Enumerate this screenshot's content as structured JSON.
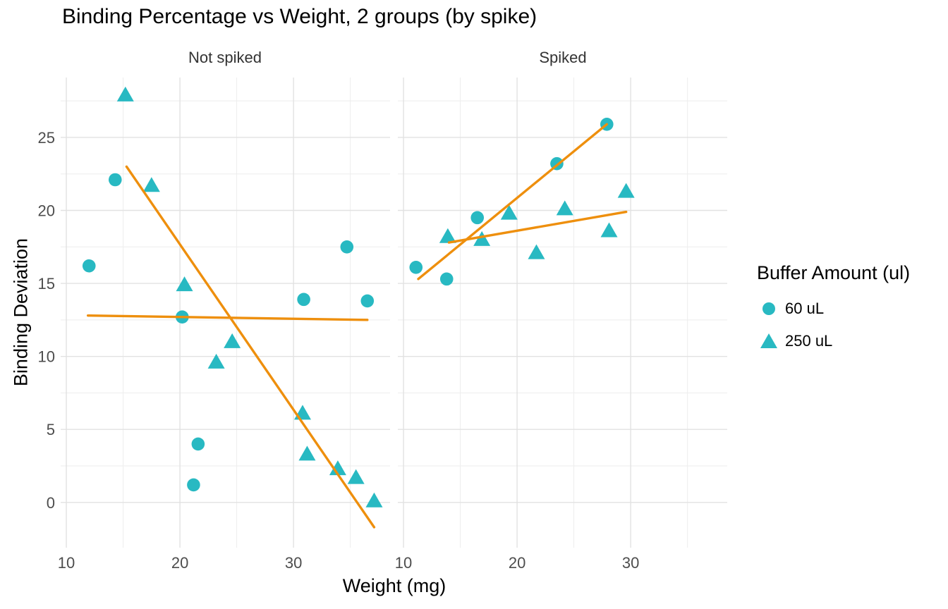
{
  "title": "Binding Percentage vs Weight, 2 groups (by spike)",
  "axes": {
    "x_title": "Weight (mg)",
    "y_title": "Binding Deviation"
  },
  "legend": {
    "title": "Buffer Amount (ul)",
    "items": [
      {
        "label": "60 uL",
        "shape": "circle"
      },
      {
        "label": "250 uL",
        "shape": "triangle"
      }
    ]
  },
  "colors": {
    "marker": "#28b9c2",
    "trend": "#ee8f0d",
    "grid_major": "#e2e2e2",
    "grid_minor": "#ededed",
    "tick_text": "#4d4d4d",
    "strip_text": "#333333",
    "text": "#000000"
  },
  "chart_data": {
    "type": "scatter",
    "title": "Binding Percentage vs Weight, 2 groups (by spike)",
    "xlabel": "Weight (mg)",
    "ylabel": "Binding Deviation",
    "xlim": [
      9.5,
      38.5
    ],
    "ylim": [
      -3.1,
      29.1
    ],
    "x_ticks": [
      10,
      20,
      30
    ],
    "x_minor_ticks": [
      15,
      25,
      35
    ],
    "y_ticks": [
      0,
      5,
      10,
      15,
      20,
      25
    ],
    "y_minor_ticks": [
      2.5,
      7.5,
      12.5,
      17.5,
      22.5,
      27.5
    ],
    "grid": true,
    "legend_position": "right",
    "facets": [
      {
        "label": "Not spiked",
        "series": [
          {
            "name": "60 uL",
            "shape": "circle",
            "points": [
              [
                12.0,
                16.2
              ],
              [
                14.3,
                22.1
              ],
              [
                20.2,
                12.7
              ],
              [
                21.2,
                1.2
              ],
              [
                21.6,
                4.0
              ],
              [
                30.9,
                13.9
              ],
              [
                34.7,
                17.5
              ],
              [
                36.5,
                13.8
              ]
            ],
            "trend": {
              "x1": 11.9,
              "y1": 12.8,
              "x2": 36.5,
              "y2": 12.5
            }
          },
          {
            "name": "250 uL",
            "shape": "triangle",
            "points": [
              [
                15.2,
                27.9
              ],
              [
                17.5,
                21.7
              ],
              [
                20.4,
                14.9
              ],
              [
                23.2,
                9.6
              ],
              [
                24.6,
                11.0
              ],
              [
                30.8,
                6.1
              ],
              [
                31.2,
                3.3
              ],
              [
                33.9,
                2.3
              ],
              [
                35.5,
                1.7
              ],
              [
                37.1,
                0.1
              ]
            ],
            "trend": {
              "x1": 15.3,
              "y1": 23.0,
              "x2": 37.1,
              "y2": -1.7
            }
          }
        ]
      },
      {
        "label": "Spiked",
        "series": [
          {
            "name": "60 uL",
            "shape": "circle",
            "points": [
              [
                11.1,
                16.1
              ],
              [
                13.8,
                15.3
              ],
              [
                16.5,
                19.5
              ],
              [
                23.5,
                23.2
              ],
              [
                27.9,
                25.9
              ]
            ],
            "trend": {
              "x1": 11.3,
              "y1": 15.3,
              "x2": 27.9,
              "y2": 25.9
            }
          },
          {
            "name": "250 uL",
            "shape": "triangle",
            "points": [
              [
                13.9,
                18.2
              ],
              [
                16.9,
                18.0
              ],
              [
                19.3,
                19.8
              ],
              [
                21.7,
                17.1
              ],
              [
                24.2,
                20.1
              ],
              [
                28.1,
                18.6
              ],
              [
                29.6,
                21.3
              ]
            ],
            "trend": {
              "x1": 14.0,
              "y1": 17.8,
              "x2": 29.6,
              "y2": 19.9
            }
          }
        ]
      }
    ]
  }
}
